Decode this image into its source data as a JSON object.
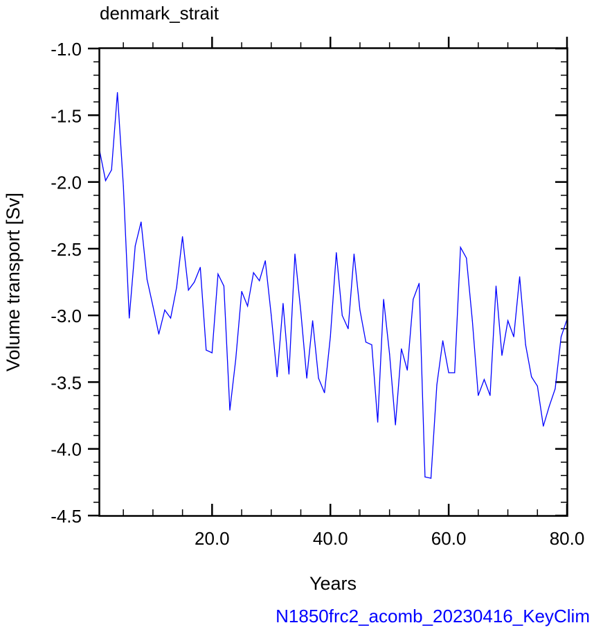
{
  "chart_data": {
    "type": "line",
    "title": "denmark_strait",
    "xlabel": "Years",
    "ylabel": "Volume transport [Sv]",
    "xlim": [
      1,
      80
    ],
    "ylim": [
      -4.5,
      -1.0
    ],
    "x_ticks": [
      20,
      40,
      60,
      80
    ],
    "x_tick_labels": [
      "20.0",
      "40.0",
      "60.0",
      "80.0"
    ],
    "y_ticks": [
      -1.0,
      -1.5,
      -2.0,
      -2.5,
      -3.0,
      -3.5,
      -4.0,
      -4.5
    ],
    "y_tick_labels": [
      "-1.0",
      "-1.5",
      "-2.0",
      "-2.5",
      "-3.0",
      "-3.5",
      "-4.0",
      "-4.5"
    ],
    "grid": false,
    "series": [
      {
        "color": "#0000ff",
        "x": [
          1,
          2,
          3,
          4,
          5,
          6,
          7,
          8,
          9,
          10,
          11,
          12,
          13,
          14,
          15,
          16,
          17,
          18,
          19,
          20,
          21,
          22,
          23,
          24,
          25,
          26,
          27,
          28,
          29,
          30,
          31,
          32,
          33,
          34,
          35,
          36,
          37,
          38,
          39,
          40,
          41,
          42,
          43,
          44,
          45,
          46,
          47,
          48,
          49,
          50,
          51,
          52,
          53,
          54,
          55,
          56,
          57,
          58,
          59,
          60,
          61,
          62,
          63,
          64,
          65,
          66,
          67,
          68,
          69,
          70,
          71,
          72,
          73,
          74,
          75,
          76,
          77,
          78,
          79,
          80
        ],
        "values": [
          -1.77,
          -1.99,
          -1.91,
          -1.33,
          -2.03,
          -3.02,
          -2.48,
          -2.3,
          -2.73,
          -2.93,
          -3.14,
          -2.96,
          -3.02,
          -2.79,
          -2.41,
          -2.81,
          -2.75,
          -2.64,
          -3.26,
          -3.28,
          -2.69,
          -2.78,
          -3.71,
          -3.33,
          -2.82,
          -2.93,
          -2.68,
          -2.74,
          -2.59,
          -3.0,
          -3.46,
          -2.91,
          -3.44,
          -2.54,
          -2.97,
          -3.47,
          -3.04,
          -3.47,
          -3.58,
          -3.16,
          -2.53,
          -3.0,
          -3.1,
          -2.54,
          -2.96,
          -3.2,
          -3.22,
          -3.8,
          -2.88,
          -3.29,
          -3.82,
          -3.25,
          -3.41,
          -2.88,
          -2.76,
          -4.21,
          -4.22,
          -3.52,
          -3.19,
          -3.43,
          -3.43,
          -2.49,
          -2.57,
          -3.04,
          -3.6,
          -3.48,
          -3.6,
          -2.78,
          -3.3,
          -3.04,
          -3.16,
          -2.71,
          -3.22,
          -3.46,
          -3.53,
          -3.83,
          -3.68,
          -3.55,
          -3.16,
          -3.03
        ]
      }
    ]
  },
  "caption": "N1850frc2_acomb_20230416_KeyClim"
}
